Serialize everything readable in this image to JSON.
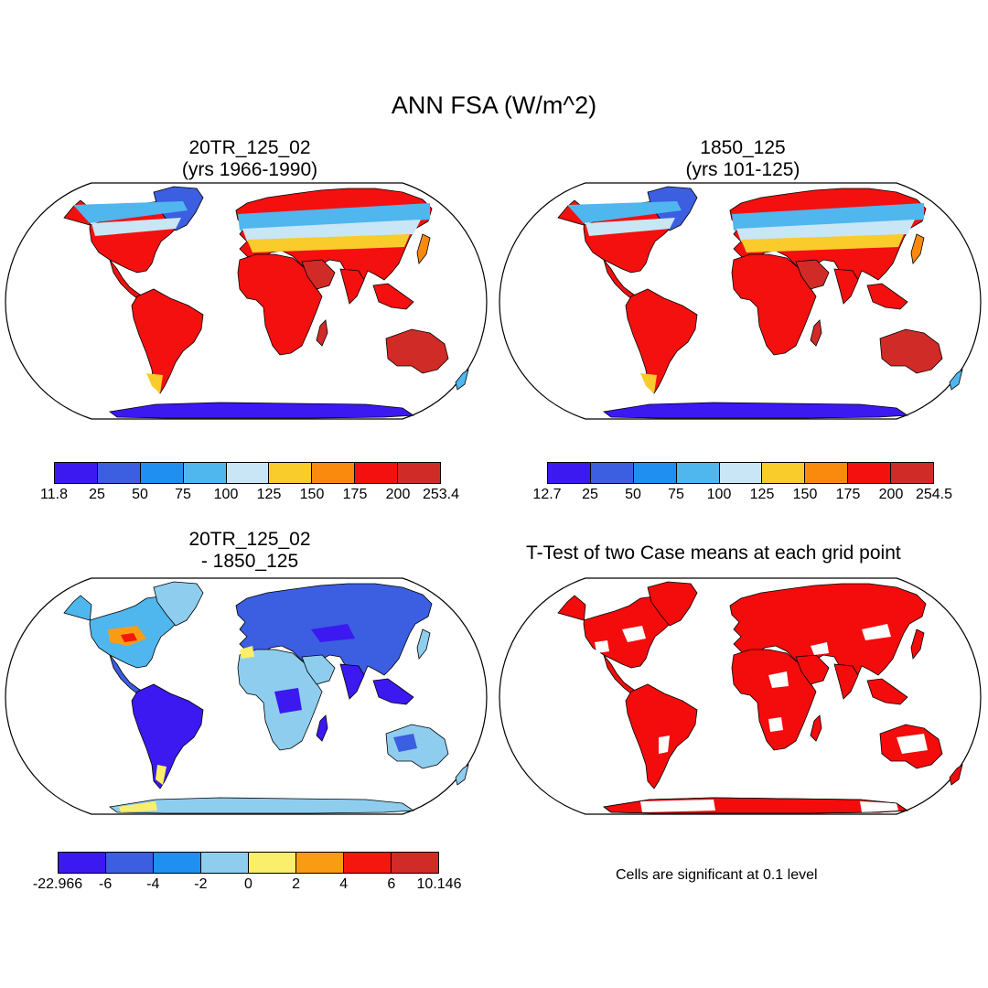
{
  "title": "ANN FSA (W/m^2)",
  "panels": {
    "top_left": {
      "title_line1": "20TR_125_02",
      "title_line2": "(yrs 1966-1990)",
      "colorbar": {
        "colors": [
          "#3b19f0",
          "#3c5ee0",
          "#1f8ff2",
          "#4fb6ee",
          "#c8e6f5",
          "#f9cb2b",
          "#f98a0e",
          "#f4100f",
          "#d12b27"
        ],
        "labels": [
          "11.8",
          "25",
          "50",
          "75",
          "100",
          "125",
          "150",
          "175",
          "200",
          "253.4"
        ]
      }
    },
    "top_right": {
      "title_line1": "1850_125",
      "title_line2": "(yrs 101-125)",
      "colorbar": {
        "colors": [
          "#3b19f0",
          "#3c5ee0",
          "#1f8ff2",
          "#4fb6ee",
          "#c8e6f5",
          "#f9cb2b",
          "#f98a0e",
          "#f4100f",
          "#d12b27"
        ],
        "labels": [
          "12.7",
          "25",
          "50",
          "75",
          "100",
          "125",
          "150",
          "175",
          "200",
          "254.5"
        ]
      }
    },
    "bottom_left": {
      "title_line1": "20TR_125_02",
      "title_line2": "- 1850_125",
      "colorbar": {
        "colors": [
          "#3b19f0",
          "#3c5ee0",
          "#1f8ff2",
          "#8ecdee",
          "#fbee6b",
          "#f99c13",
          "#f4170f",
          "#d12b27"
        ],
        "labels": [
          "-22.966",
          "-6",
          "-4",
          "-2",
          "0",
          "2",
          "4",
          "6",
          "10.146"
        ]
      }
    },
    "bottom_right": {
      "title": "T-Test of two Case means at each grid point",
      "note": "Cells are significant at 0.1 level",
      "significant_color": "#f40b0b"
    }
  }
}
